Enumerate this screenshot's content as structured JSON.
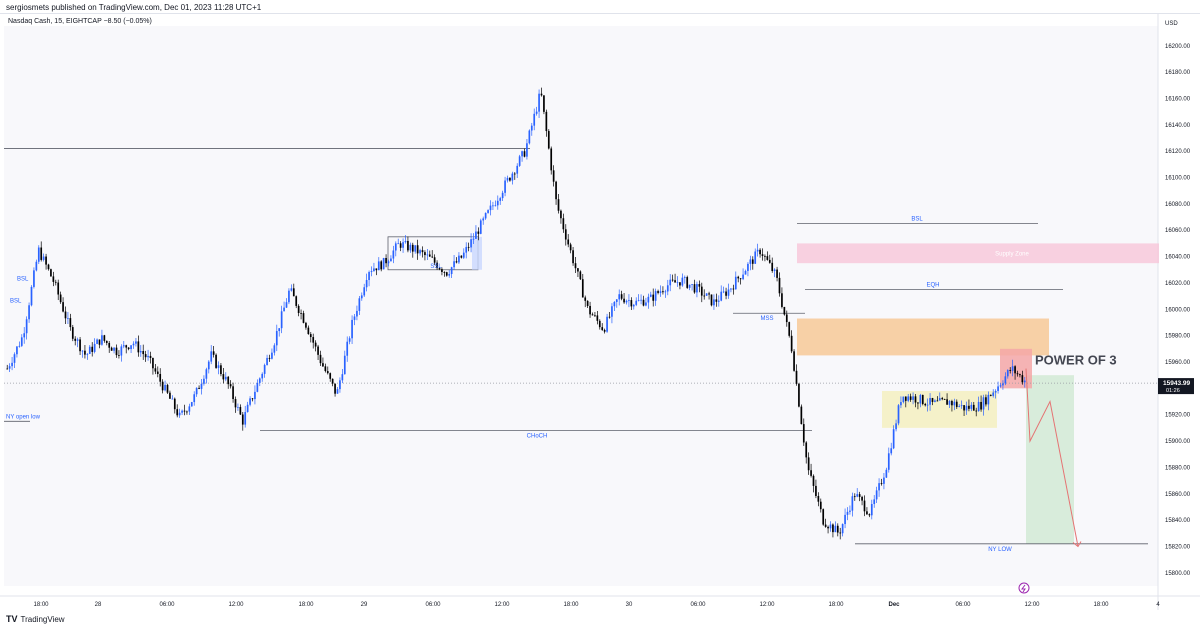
{
  "publisher": "sergiosmets published on TradingView.com, Dec 01, 2023 11:28 UTC+1",
  "symbol_line": "Nasdaq Cash, 15, EIGHTCAP  −8.50 (−0.05%)",
  "currency": "USD",
  "footer_brand": "TradingView",
  "colors": {
    "up_candle": "#2962ff",
    "down_candle": "#000000",
    "supply_zone": "#f7c6d9",
    "orange_zone": "#f7c38a",
    "yellow_zone": "#f5f0c0",
    "red_box": "#f4a7a7",
    "green_zone": "#cfe8d3",
    "projection": "#e57373",
    "level_line": "#5d606b",
    "label_blue": "#2962ff"
  },
  "chart_data": {
    "type": "candlestick",
    "title": "",
    "y_axis": {
      "min": 15790,
      "max": 16215,
      "ticks": [
        16200,
        16180,
        16160,
        16140,
        16120,
        16100,
        16080,
        16060,
        16040,
        16020,
        16000,
        15980,
        15960,
        15940,
        15920,
        15900,
        15880,
        15860,
        15840,
        15820,
        15800
      ],
      "tick_labels": [
        "16200.00",
        "16180.00",
        "16160.00",
        "16140.00",
        "16120.00",
        "16100.00",
        "16080.00",
        "16060.00",
        "16040.00",
        "16020.00",
        "16000.00",
        "15980.00",
        "15960.00",
        "15940.00",
        "15920.00",
        "15900.00",
        "15880.00",
        "15860.00",
        "15840.00",
        "15820.00",
        "15800.00"
      ]
    },
    "x_axis": {
      "labels": [
        "18:00",
        "28",
        "06:00",
        "12:00",
        "18:00",
        "29",
        "06:00",
        "12:00",
        "18:00",
        "30",
        "06:00",
        "12:00",
        "18:00",
        "Dec",
        "06:00",
        "12:00",
        "18:00",
        "4"
      ]
    },
    "last_price": {
      "value": 15943.99,
      "label": "15943.99",
      "countdown": "01:26"
    },
    "price_path": [
      [
        15955,
        15980
      ],
      [
        15980,
        16045
      ],
      [
        16045,
        16020
      ],
      [
        16020,
        15985
      ],
      [
        15985,
        15965
      ],
      [
        15965,
        15978
      ],
      [
        15978,
        15968
      ],
      [
        15968,
        15975
      ],
      [
        15975,
        15962
      ],
      [
        15962,
        15940
      ],
      [
        15940,
        15918
      ],
      [
        15918,
        15935
      ],
      [
        15935,
        15965
      ],
      [
        15965,
        15945
      ],
      [
        15945,
        15915
      ],
      [
        15915,
        15945
      ],
      [
        15945,
        15975
      ],
      [
        15975,
        16015
      ],
      [
        16015,
        15990
      ],
      [
        15990,
        15960
      ],
      [
        15960,
        15935
      ],
      [
        15935,
        15990
      ],
      [
        15990,
        16030
      ],
      [
        16030,
        16035
      ],
      [
        16035,
        16050
      ],
      [
        16050,
        16045
      ],
      [
        16045,
        16038
      ],
      [
        16038,
        16028
      ],
      [
        16028,
        16040
      ],
      [
        16040,
        16060
      ],
      [
        16060,
        16080
      ],
      [
        16080,
        16100
      ],
      [
        16100,
        16120
      ],
      [
        16120,
        16165
      ],
      [
        16165,
        16080
      ],
      [
        16080,
        16040
      ],
      [
        16040,
        16000
      ],
      [
        16000,
        15985
      ],
      [
        15985,
        16010
      ],
      [
        16010,
        16005
      ],
      [
        16005,
        16008
      ],
      [
        16008,
        16018
      ],
      [
        16018,
        16022
      ],
      [
        16022,
        16015
      ],
      [
        16015,
        16005
      ],
      [
        16005,
        16015
      ],
      [
        16015,
        16030
      ],
      [
        16030,
        16045
      ],
      [
        16045,
        16025
      ],
      [
        16025,
        15970
      ],
      [
        15970,
        15880
      ],
      [
        15880,
        15840
      ],
      [
        15840,
        15830
      ],
      [
        15830,
        15860
      ],
      [
        15860,
        15845
      ],
      [
        15845,
        15880
      ],
      [
        15880,
        15935
      ],
      [
        15935,
        15932
      ],
      [
        15932,
        15928
      ],
      [
        15928,
        15930
      ],
      [
        15930,
        15925
      ],
      [
        15925,
        15927
      ],
      [
        15927,
        15940
      ],
      [
        15940,
        15955
      ],
      [
        15955,
        15944
      ]
    ],
    "annotations": {
      "bsl_left": "BSL",
      "bsl_left2": "BSL",
      "ssl": "SSL",
      "bsl": "BSL",
      "supply_zone": "Supply Zone",
      "eqh": "EQH",
      "mss": "MSS",
      "choch": "CHoCH",
      "ny_low": "NY LOW",
      "power_of_3": "POWER OF 3",
      "open_low": "NY open low"
    },
    "levels": {
      "bsl": 16065,
      "supply_top": 16050,
      "supply_bottom": 16035,
      "eqh": 16015,
      "mss": 15997,
      "orange_top": 15993,
      "orange_bottom": 15965,
      "left_high": 16122,
      "ssl_top": 16055,
      "ssl_bottom": 16030,
      "choch": 15908,
      "ny_low": 15822,
      "open_low": 15915,
      "yellow_top": 15938,
      "yellow_bottom": 15910,
      "red_top": 15970,
      "red_bottom": 15940,
      "green_top": 15950,
      "green_bottom": 15822,
      "dotted": 15943.99
    },
    "projection_path": [
      15955,
      15900,
      15930,
      15820
    ]
  }
}
